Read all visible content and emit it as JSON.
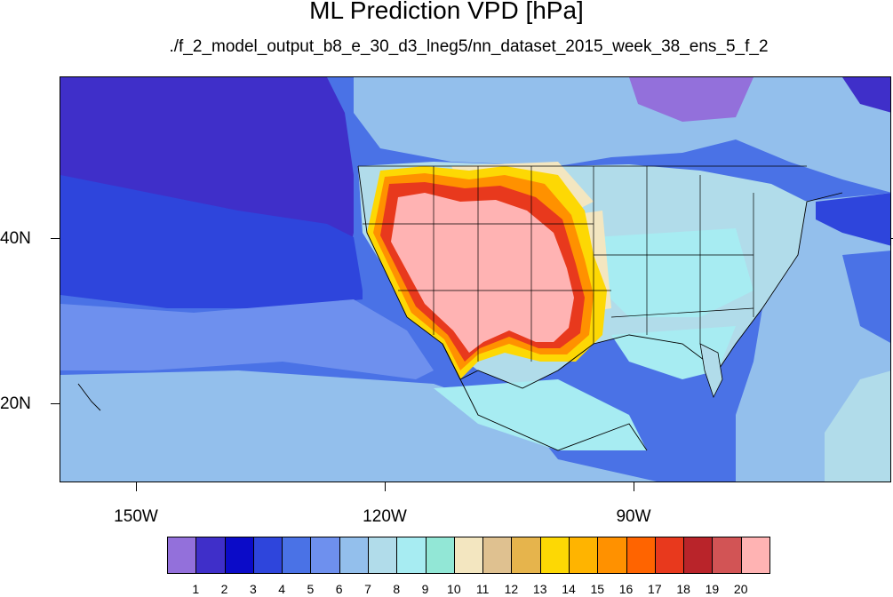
{
  "title": "ML Prediction VPD [hPa]",
  "subtitle": "./f_2_model_output_b8_e_30_d3_lneg5/nn_dataset_2015_week_38_ens_5_f_2",
  "axes": {
    "lat_labels": [
      "40N",
      "20N"
    ],
    "lon_labels": [
      "150W",
      "120W",
      "90W"
    ]
  },
  "legend": {
    "labels": [
      "1",
      "2",
      "3",
      "4",
      "5",
      "6",
      "7",
      "8",
      "9",
      "10",
      "11",
      "12",
      "13",
      "14",
      "15",
      "16",
      "17",
      "18",
      "19",
      "20"
    ],
    "colors": [
      "#9370db",
      "#3f2fc9",
      "#0b0bc8",
      "#2e45dc",
      "#4a72e6",
      "#6e90ee",
      "#93bfec",
      "#b1dcea",
      "#a7ecf2",
      "#92e7d6",
      "#f3e6c0",
      "#dfc190",
      "#e6b44c",
      "#fdd804",
      "#ffb400",
      "#ff9100",
      "#ff6400",
      "#e8391d",
      "#b9242a",
      "#d25455",
      "#ffb3b3"
    ]
  },
  "map_region": {
    "projection": "cylindrical equidistant",
    "lon_range": [
      -160,
      -60
    ],
    "lat_range": [
      10,
      59
    ],
    "colors": {
      "ocean_deep": "#2e45dc",
      "ocean_mid": "#4a72e6",
      "ocean_light": "#6e90ee",
      "pacific_far": "#3f2fc9",
      "land_cool": "#93bfec",
      "land_mild": "#b1dcea",
      "gulf": "#a7ecf2",
      "southwest_hot": "#ffb3b3",
      "ridge_red": "#e8391d",
      "ridge_orange": "#ff9100",
      "ridge_yellow": "#fdd804",
      "plains_tan": "#f3e6c0",
      "canada_purple": "#9370db"
    }
  }
}
